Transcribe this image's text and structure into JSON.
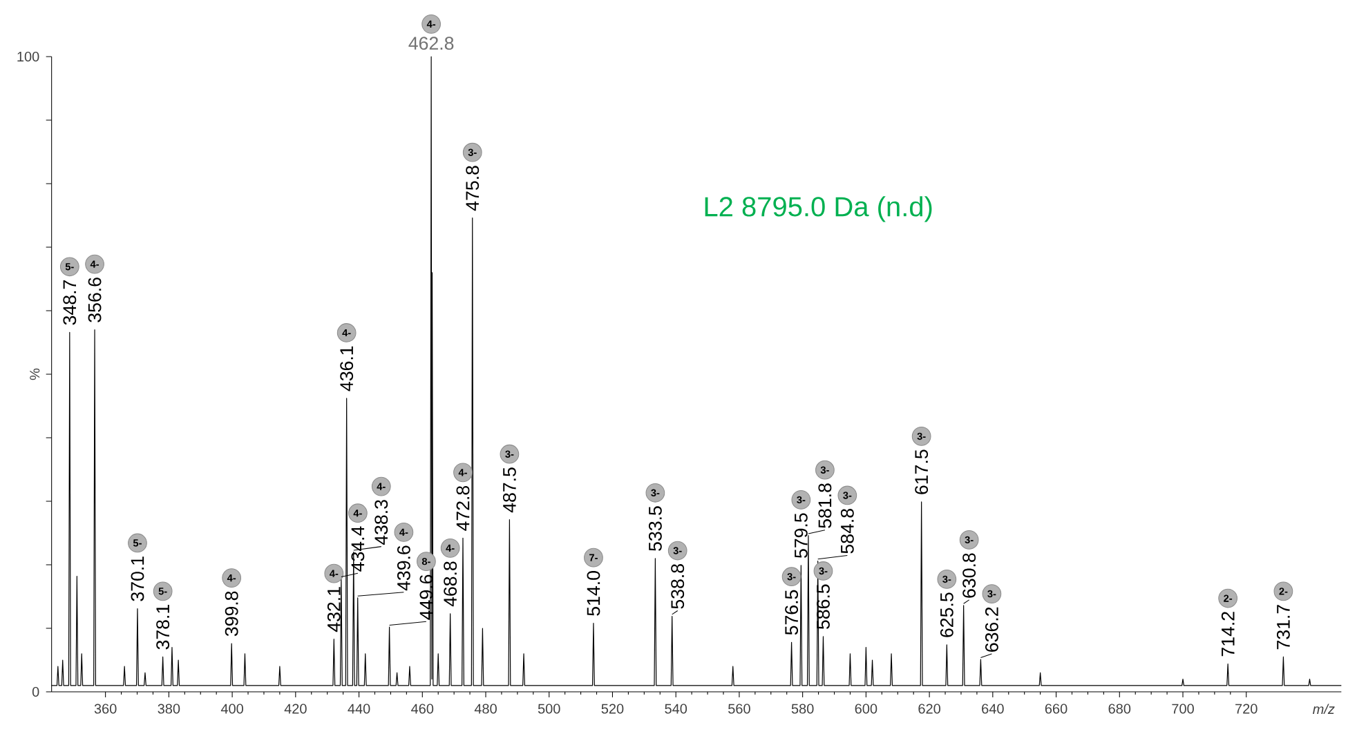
{
  "chart_data": {
    "type": "line",
    "xlabel": "m/z",
    "ylabel": "%",
    "xlim": [
      343,
      750
    ],
    "ylim": [
      0,
      100
    ],
    "xticks": [
      360,
      380,
      400,
      420,
      440,
      460,
      480,
      500,
      520,
      540,
      560,
      580,
      600,
      620,
      640,
      660,
      680,
      700,
      720
    ],
    "yticks": [
      0,
      {
        "value": 10,
        "label": null
      },
      {
        "value": 20,
        "label": null
      },
      {
        "value": 30,
        "label": null
      },
      {
        "value": 40,
        "label": null
      },
      {
        "value": 50,
        "label": null
      },
      {
        "value": 60,
        "label": null
      },
      {
        "value": 70,
        "label": null
      },
      {
        "value": 80,
        "label": null
      },
      {
        "value": 90,
        "label": null
      },
      100
    ],
    "grid": false,
    "marker": "none",
    "line_style": "solid",
    "series": [
      {
        "color": "#000000",
        "x": [
          343,
          344.7,
          345,
          345.3,
          346.2,
          346.5,
          346.8,
          348.4,
          348.7,
          349,
          350.7,
          351,
          351.3,
          352.2,
          352.5,
          352.8,
          356.3,
          356.6,
          356.9,
          365.7,
          366,
          366.3,
          369.8,
          370.1,
          370.4,
          372.2,
          372.5,
          372.8,
          377.8,
          378.1,
          378.4,
          380.7,
          381,
          381.3,
          382.7,
          383,
          383.3,
          399.5,
          399.8,
          400.1,
          403.7,
          404,
          404.3,
          414.7,
          415,
          415.3,
          431.8,
          432.1,
          432.4,
          434.1,
          434.4,
          434.7,
          435.8,
          436.1,
          436.4,
          438,
          438.3,
          438.6,
          439.3,
          439.6,
          439.9,
          441.7,
          442,
          442.3,
          449.3,
          449.6,
          449.9,
          451.7,
          452,
          452.3,
          455.7,
          456,
          456.3,
          462.5,
          462.8,
          463.0,
          463.1,
          463.4,
          464.7,
          465,
          465.3,
          468.5,
          468.8,
          469.1,
          472.5,
          472.8,
          473.1,
          475.5,
          475.8,
          476.1,
          478.7,
          479,
          479.3,
          487.2,
          487.5,
          487.8,
          491.7,
          492,
          492.3,
          513.7,
          514,
          514.3,
          533.2,
          533.5,
          533.8,
          538.5,
          538.8,
          539.1,
          557.7,
          558,
          558.3,
          576.2,
          576.5,
          576.8,
          579.2,
          579.5,
          579.8,
          581.5,
          581.8,
          582.1,
          584.5,
          584.8,
          585.1,
          586.2,
          586.5,
          586.8,
          594.7,
          595,
          595.3,
          599.7,
          600,
          600.3,
          601.7,
          602,
          602.3,
          607.7,
          608,
          608.3,
          617.2,
          617.5,
          617.8,
          625.2,
          625.5,
          625.8,
          630.5,
          630.8,
          631.1,
          635.9,
          636.2,
          636.5,
          654.7,
          655,
          655.3,
          699.7,
          700,
          700.3,
          713.9,
          714.2,
          714.5,
          731.4,
          731.7,
          732,
          739.7,
          740,
          740.3,
          750
        ],
        "values": [
          1,
          1,
          4,
          1,
          1,
          5,
          1,
          1,
          56.6,
          1,
          1,
          18.2,
          1,
          1,
          6,
          1,
          1,
          57,
          1,
          1,
          4,
          1,
          1,
          13.1,
          1,
          1,
          3,
          1,
          1,
          5.5,
          1,
          1,
          7,
          1,
          1,
          5,
          1,
          1,
          7.6,
          1,
          1,
          6,
          1,
          1,
          4,
          1,
          1,
          8.3,
          1,
          1,
          17.8,
          1,
          1,
          46.2,
          1,
          1,
          22,
          1,
          1,
          14.8,
          1,
          1,
          6,
          1,
          1,
          10.2,
          1,
          1,
          3,
          1,
          1,
          4,
          1,
          1,
          100,
          2,
          66,
          1,
          1,
          6,
          1,
          1,
          12.3,
          1,
          1,
          24.2,
          1,
          1,
          74.6,
          1,
          1,
          10,
          1,
          1,
          27.1,
          1,
          1,
          6,
          1,
          1,
          10.8,
          1,
          1,
          21,
          1,
          1,
          11.9,
          1,
          1,
          4,
          1,
          1,
          7.8,
          1,
          1,
          19.9,
          1,
          1,
          24.6,
          1,
          1,
          20.6,
          1,
          1,
          8.7,
          1,
          1,
          6,
          1,
          1,
          7,
          1,
          1,
          5,
          1,
          1,
          6,
          1,
          1,
          29.9,
          1,
          1,
          7.4,
          1,
          1,
          13.6,
          1,
          1,
          5.1,
          1,
          1,
          3,
          1,
          1,
          2,
          1,
          1,
          4.4,
          1,
          1,
          5.5,
          1,
          1,
          2,
          1,
          1
        ]
      }
    ],
    "annotations": [
      "L2 8795.0 Da (n.d)",
      {
        "text": "348.7",
        "x": 348.7,
        "y": 56.6
      },
      "5-",
      {
        "text": "356.6",
        "x": 356.6,
        "y": 57
      },
      "4-",
      {
        "text": "370.1",
        "x": 370.1,
        "y": 13.1
      },
      "5-",
      {
        "text": "378.1",
        "x": 378.1,
        "y": 5.5
      },
      "5-",
      {
        "text": "399.8",
        "x": 399.8,
        "y": 7.6
      },
      "4-",
      {
        "text": "432.1",
        "x": 432.1,
        "y": 8.3
      },
      "4-",
      {
        "text": "434.4",
        "x": 434.4,
        "y": 17.8
      },
      "4-",
      {
        "text": "436.1",
        "x": 436.1,
        "y": 46.2
      },
      "4-",
      {
        "text": "438.3",
        "x": 438.3,
        "y": 22
      },
      "4-",
      {
        "text": "439.6",
        "x": 439.6,
        "y": 14.8
      },
      "4-",
      {
        "text": "449.6",
        "x": 449.6,
        "y": 10.2
      },
      "8-",
      {
        "text": "462.8",
        "x": 462.8,
        "y": 100
      },
      "4-",
      {
        "text": "468.8",
        "x": 468.8,
        "y": 12.3
      },
      "4-",
      {
        "text": "472.8",
        "x": 472.8,
        "y": 24.2
      },
      "4-",
      {
        "text": "475.8",
        "x": 475.8,
        "y": 74.6
      },
      "3-",
      {
        "text": "487.5",
        "x": 487.5,
        "y": 27.1
      },
      "3-",
      {
        "text": "514.0",
        "x": 514,
        "y": 10.8
      },
      "7-",
      {
        "text": "533.5",
        "x": 533.5,
        "y": 21
      },
      "3-",
      {
        "text": "538.8",
        "x": 538.8,
        "y": 11.9
      },
      "3-",
      {
        "text": "576.5",
        "x": 576.5,
        "y": 7.8
      },
      "3-",
      {
        "text": "579.5",
        "x": 579.5,
        "y": 19.9
      },
      "3-",
      {
        "text": "581.8",
        "x": 581.8,
        "y": 24.6
      },
      "3-",
      {
        "text": "584.8",
        "x": 584.8,
        "y": 20.6
      },
      "3-",
      {
        "text": "586.5",
        "x": 586.5,
        "y": 8.7
      },
      "3-",
      {
        "text": "617.5",
        "x": 617.5,
        "y": 29.9
      },
      "3-",
      {
        "text": "625.5",
        "x": 625.5,
        "y": 7.4
      },
      "3-",
      {
        "text": "630.8",
        "x": 630.8,
        "y": 13.6
      },
      "3-",
      {
        "text": "636.2",
        "x": 636.2,
        "y": 5.1
      },
      "3-",
      {
        "text": "714.2",
        "x": 714.2,
        "y": 4.4
      },
      "2-",
      {
        "text": "731.7",
        "x": 731.7,
        "y": 5.5
      },
      "2-"
    ]
  }
}
